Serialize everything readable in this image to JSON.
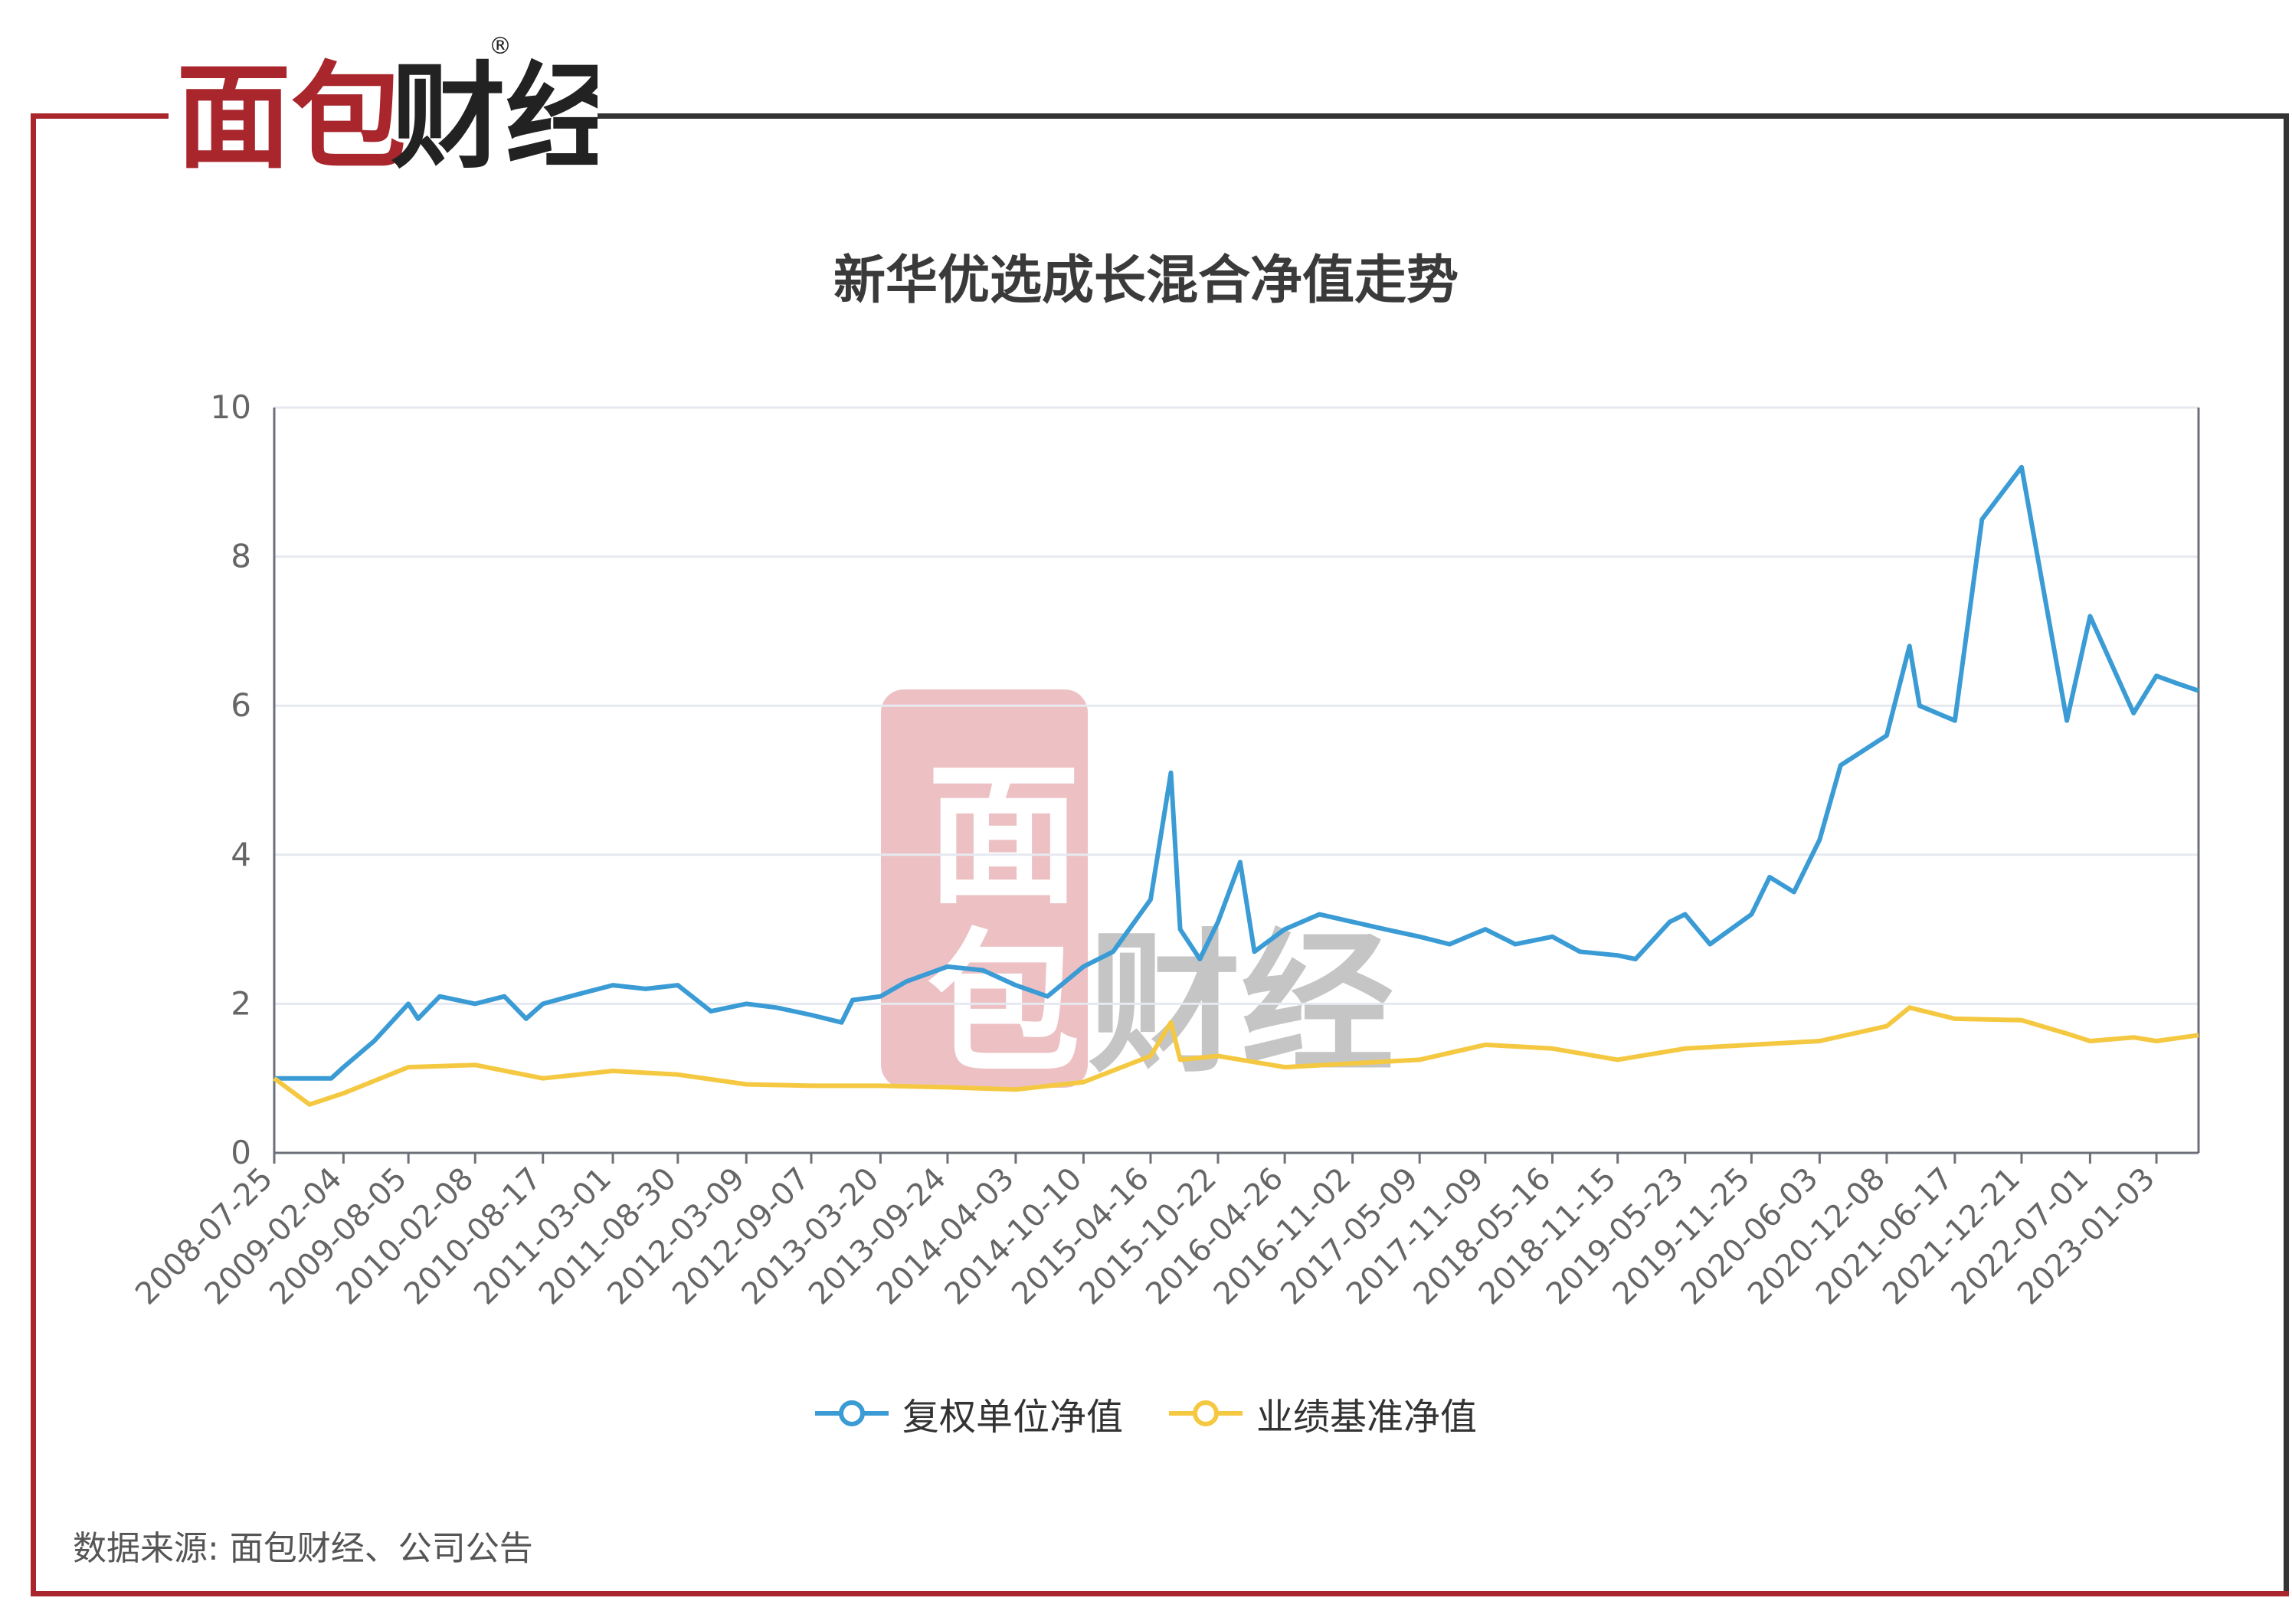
{
  "brand": {
    "logo_text": "面包财经",
    "registered_mark": "®"
  },
  "colors": {
    "frame_red": "#a8262c",
    "frame_dark": "#333333",
    "series_blue": "#3a9bd5",
    "series_yellow": "#f5c842",
    "grid": "#e6e9ef"
  },
  "chart_data": {
    "type": "line",
    "title": "新华优选成长混合净值走势",
    "xlabel": "",
    "ylabel": "",
    "ylim": [
      0,
      10
    ],
    "yticks": [
      0,
      2,
      4,
      6,
      8,
      10
    ],
    "xticks": [
      "2008-07-25",
      "2009-02-04",
      "2009-08-05",
      "2010-02-08",
      "2010-08-17",
      "2011-03-01",
      "2011-08-30",
      "2012-03-09",
      "2012-09-07",
      "2013-03-20",
      "2013-09-24",
      "2014-04-03",
      "2014-10-10",
      "2015-04-16",
      "2015-10-22",
      "2016-04-26",
      "2016-11-02",
      "2017-05-09",
      "2017-11-09",
      "2018-05-16",
      "2018-11-15",
      "2019-05-23",
      "2019-11-25",
      "2020-06-03",
      "2020-12-08",
      "2021-06-17",
      "2021-12-21",
      "2022-07-01",
      "2023-01-03"
    ],
    "grid": true,
    "legend_position": "bottom-center",
    "series": [
      {
        "name": "复权单位净值",
        "color": "#3a9bd5",
        "x": [
          "2008-07-25",
          "2008-10-01",
          "2009-01-01",
          "2009-02-04",
          "2009-05-01",
          "2009-08-05",
          "2009-09-01",
          "2009-11-01",
          "2010-02-08",
          "2010-05-01",
          "2010-07-01",
          "2010-08-17",
          "2010-11-01",
          "2011-03-01",
          "2011-06-01",
          "2011-08-30",
          "2011-12-01",
          "2012-03-09",
          "2012-06-01",
          "2012-09-07",
          "2012-12-01",
          "2013-01-01",
          "2013-03-20",
          "2013-06-01",
          "2013-09-24",
          "2014-01-01",
          "2014-04-03",
          "2014-07-01",
          "2014-10-10",
          "2015-01-01",
          "2015-04-16",
          "2015-06-12",
          "2015-07-08",
          "2015-09-01",
          "2015-10-22",
          "2015-12-23",
          "2016-02-01",
          "2016-04-26",
          "2016-08-01",
          "2016-11-02",
          "2017-02-01",
          "2017-05-09",
          "2017-08-01",
          "2017-11-09",
          "2018-02-01",
          "2018-05-16",
          "2018-08-01",
          "2018-11-15",
          "2019-01-04",
          "2019-04-10",
          "2019-05-23",
          "2019-08-01",
          "2019-11-25",
          "2020-01-15",
          "2020-03-23",
          "2020-06-03",
          "2020-08-01",
          "2020-12-08",
          "2021-02-10",
          "2021-03-10",
          "2021-06-17",
          "2021-09-01",
          "2021-12-21",
          "2022-04-27",
          "2022-07-01",
          "2022-10-31",
          "2023-01-03",
          "2023-03-01",
          "2023-05-01"
        ],
        "y": [
          1.0,
          1.0,
          1.0,
          1.15,
          1.5,
          2.0,
          1.8,
          2.1,
          2.0,
          2.1,
          1.8,
          2.0,
          2.1,
          2.25,
          2.2,
          2.25,
          1.9,
          2.0,
          1.95,
          1.85,
          1.75,
          2.05,
          2.1,
          2.3,
          2.5,
          2.45,
          2.25,
          2.1,
          2.5,
          2.7,
          3.4,
          5.1,
          3.0,
          2.6,
          3.1,
          3.9,
          2.7,
          3.0,
          3.2,
          3.1,
          3.0,
          2.9,
          2.8,
          3.0,
          2.8,
          2.9,
          2.7,
          2.65,
          2.6,
          3.1,
          3.2,
          2.8,
          3.2,
          3.7,
          3.5,
          4.2,
          5.2,
          5.6,
          6.8,
          6.0,
          5.8,
          8.5,
          9.2,
          5.8,
          7.2,
          5.9,
          6.4,
          6.3,
          6.2
        ]
      },
      {
        "name": "业绩基准净值",
        "color": "#f5c842",
        "x": [
          "2008-07-25",
          "2008-11-01",
          "2009-02-04",
          "2009-08-05",
          "2010-02-08",
          "2010-08-17",
          "2011-03-01",
          "2011-08-30",
          "2012-03-09",
          "2012-09-07",
          "2013-03-20",
          "2013-09-24",
          "2014-04-03",
          "2014-10-10",
          "2015-04-16",
          "2015-06-12",
          "2015-07-08",
          "2015-10-22",
          "2016-04-26",
          "2016-11-02",
          "2017-05-09",
          "2017-11-09",
          "2018-05-16",
          "2018-11-15",
          "2019-05-23",
          "2019-11-25",
          "2020-06-03",
          "2020-12-08",
          "2021-02-10",
          "2021-06-17",
          "2021-12-21",
          "2022-04-27",
          "2022-07-01",
          "2022-10-31",
          "2023-01-03",
          "2023-05-01"
        ],
        "y": [
          1.0,
          0.65,
          0.8,
          1.15,
          1.18,
          1.0,
          1.1,
          1.05,
          0.92,
          0.9,
          0.9,
          0.88,
          0.85,
          0.95,
          1.3,
          1.75,
          1.25,
          1.3,
          1.15,
          1.2,
          1.25,
          1.45,
          1.4,
          1.25,
          1.4,
          1.45,
          1.5,
          1.7,
          1.95,
          1.8,
          1.78,
          1.6,
          1.5,
          1.55,
          1.5,
          1.58
        ]
      }
    ]
  },
  "footer": {
    "source": "数据来源: 面包财经、公司公告"
  },
  "watermark": {
    "text": "面包财经"
  }
}
